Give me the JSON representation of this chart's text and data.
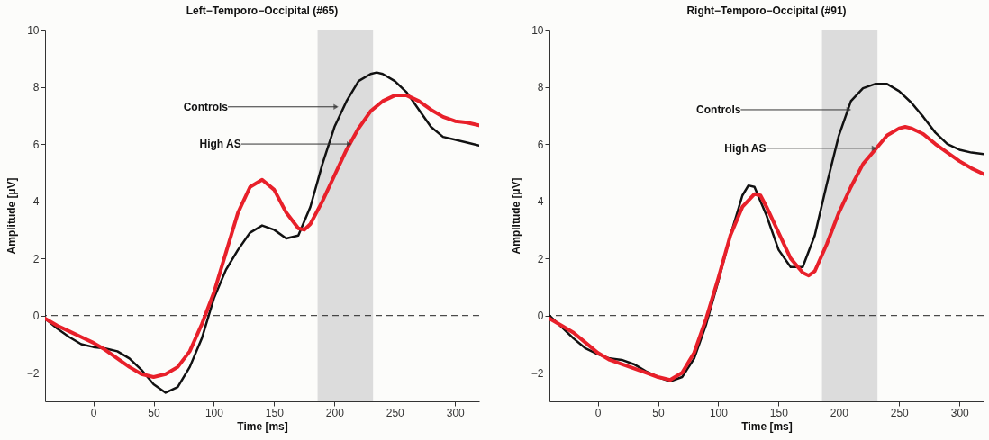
{
  "chart_data": [
    {
      "type": "line",
      "title": "Left−Temporo−Occipital (#65)",
      "xlabel": "Time [ms]",
      "ylabel": "Amplitude [µV]",
      "xlim": [
        -40,
        320
      ],
      "ylim": [
        -3,
        10
      ],
      "xticks": [
        0,
        50,
        100,
        150,
        200,
        250,
        300
      ],
      "yticks": [
        -2,
        0,
        2,
        4,
        6,
        8,
        10
      ],
      "series": [
        {
          "color": "#111111",
          "x": [
            -40,
            -30,
            -20,
            -10,
            0,
            10,
            20,
            30,
            40,
            50,
            60,
            70,
            80,
            90,
            100,
            110,
            120,
            130,
            140,
            150,
            160,
            170,
            180,
            190,
            200,
            210,
            220,
            230,
            235,
            240,
            250,
            260,
            270,
            280,
            290,
            300,
            310,
            320
          ],
          "values": [
            -0.1,
            -0.45,
            -0.75,
            -1.0,
            -1.1,
            -1.15,
            -1.25,
            -1.5,
            -1.9,
            -2.4,
            -2.7,
            -2.5,
            -1.8,
            -0.8,
            0.6,
            1.6,
            2.3,
            2.9,
            3.15,
            3.0,
            2.7,
            2.8,
            3.8,
            5.3,
            6.6,
            7.5,
            8.2,
            8.45,
            8.5,
            8.45,
            8.2,
            7.8,
            7.2,
            6.6,
            6.25,
            6.15,
            6.05,
            5.95
          ]
        },
        {
          "color": "#e8202a",
          "x": [
            -40,
            -30,
            -20,
            -10,
            0,
            10,
            20,
            30,
            40,
            50,
            60,
            70,
            80,
            90,
            100,
            110,
            120,
            130,
            140,
            150,
            160,
            170,
            175,
            180,
            190,
            200,
            210,
            220,
            230,
            240,
            250,
            260,
            270,
            280,
            290,
            300,
            310,
            320
          ],
          "values": [
            -0.1,
            -0.35,
            -0.55,
            -0.75,
            -0.95,
            -1.2,
            -1.5,
            -1.8,
            -2.05,
            -2.15,
            -2.05,
            -1.8,
            -1.25,
            -0.3,
            0.8,
            2.2,
            3.6,
            4.5,
            4.75,
            4.4,
            3.6,
            3.05,
            3.0,
            3.2,
            4.0,
            4.9,
            5.8,
            6.55,
            7.15,
            7.5,
            7.7,
            7.7,
            7.5,
            7.2,
            6.95,
            6.8,
            6.75,
            6.65
          ]
        }
      ],
      "ref_lines": [
        {
          "axis": "y",
          "value": 0,
          "label": null,
          "color": "#222222",
          "line_style": "dashed"
        }
      ],
      "bands": [
        {
          "axis": "x",
          "from": 186,
          "to": 232,
          "label": null,
          "color": "#dcdcdc"
        }
      ],
      "annotations": [
        {
          "text": "Controls",
          "x": 205,
          "y": 7.3
        },
        {
          "text": "High AS",
          "x": 216,
          "y": 6.0
        }
      ]
    },
    {
      "type": "line",
      "title": "Right−Temporo−Occipital (#91)",
      "xlabel": "Time [ms]",
      "ylabel": "Amplitude [µV]",
      "xlim": [
        -40,
        320
      ],
      "ylim": [
        -3,
        10
      ],
      "xticks": [
        0,
        50,
        100,
        150,
        200,
        250,
        300
      ],
      "yticks": [
        -2,
        0,
        2,
        4,
        6,
        8,
        10
      ],
      "series": [
        {
          "color": "#111111",
          "x": [
            -40,
            -30,
            -20,
            -10,
            0,
            10,
            20,
            30,
            40,
            50,
            60,
            70,
            80,
            90,
            100,
            110,
            120,
            125,
            130,
            140,
            150,
            160,
            170,
            180,
            190,
            200,
            210,
            220,
            230,
            240,
            250,
            260,
            270,
            280,
            290,
            300,
            310,
            320
          ],
          "values": [
            0.0,
            -0.4,
            -0.8,
            -1.15,
            -1.35,
            -1.5,
            -1.55,
            -1.7,
            -1.95,
            -2.15,
            -2.3,
            -2.15,
            -1.5,
            -0.3,
            1.2,
            2.8,
            4.2,
            4.55,
            4.5,
            3.5,
            2.3,
            1.7,
            1.7,
            2.8,
            4.6,
            6.3,
            7.5,
            7.95,
            8.1,
            8.1,
            7.85,
            7.45,
            6.95,
            6.4,
            6.0,
            5.8,
            5.7,
            5.65
          ]
        },
        {
          "color": "#e8202a",
          "x": [
            -40,
            -30,
            -20,
            -10,
            0,
            10,
            20,
            30,
            40,
            50,
            60,
            70,
            80,
            90,
            100,
            110,
            120,
            130,
            135,
            140,
            150,
            160,
            170,
            175,
            180,
            190,
            200,
            210,
            220,
            230,
            240,
            250,
            255,
            260,
            270,
            280,
            290,
            300,
            310,
            320
          ],
          "values": [
            -0.1,
            -0.35,
            -0.6,
            -0.95,
            -1.3,
            -1.55,
            -1.7,
            -1.85,
            -2.0,
            -2.15,
            -2.25,
            -2.0,
            -1.3,
            -0.1,
            1.3,
            2.8,
            3.8,
            4.25,
            4.2,
            3.8,
            2.9,
            2.0,
            1.5,
            1.4,
            1.55,
            2.5,
            3.6,
            4.5,
            5.3,
            5.8,
            6.3,
            6.55,
            6.6,
            6.55,
            6.35,
            6.0,
            5.7,
            5.4,
            5.15,
            4.95
          ]
        }
      ],
      "ref_lines": [
        {
          "axis": "y",
          "value": 0,
          "label": null,
          "color": "#222222",
          "line_style": "dashed"
        }
      ],
      "bands": [
        {
          "axis": "x",
          "from": 186,
          "to": 232,
          "label": null,
          "color": "#dcdcdc"
        }
      ],
      "annotations": [
        {
          "text": "Controls",
          "x": 212,
          "y": 7.2
        },
        {
          "text": "High AS",
          "x": 233,
          "y": 5.85
        }
      ]
    }
  ]
}
